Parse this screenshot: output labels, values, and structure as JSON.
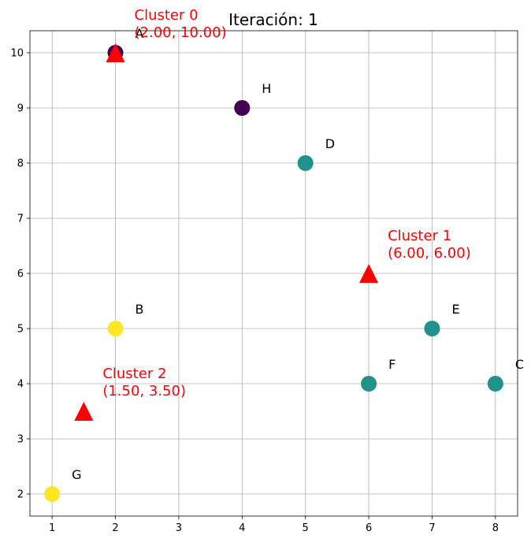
{
  "chart_data": {
    "type": "scatter",
    "title": "Iteración: 1",
    "xlabel": "",
    "ylabel": "",
    "xlim": [
      0.65,
      8.35
    ],
    "ylim": [
      1.6,
      10.4
    ],
    "xticks": [
      1,
      2,
      3,
      4,
      5,
      6,
      7,
      8
    ],
    "yticks": [
      2,
      3,
      4,
      5,
      6,
      7,
      8,
      9,
      10
    ],
    "grid": true,
    "legend": "none",
    "cluster_colors": [
      "#440154",
      "#21918c",
      "#fde725"
    ],
    "centroid_color": "#ff0000",
    "points": [
      {
        "label": "A",
        "x": 2,
        "y": 10,
        "cluster": 0
      },
      {
        "label": "B",
        "x": 2,
        "y": 5,
        "cluster": 2
      },
      {
        "label": "C",
        "x": 8,
        "y": 4,
        "cluster": 1
      },
      {
        "label": "D",
        "x": 5,
        "y": 8,
        "cluster": 1
      },
      {
        "label": "E",
        "x": 7,
        "y": 5,
        "cluster": 1
      },
      {
        "label": "F",
        "x": 6,
        "y": 4,
        "cluster": 1
      },
      {
        "label": "G",
        "x": 1,
        "y": 2,
        "cluster": 2
      },
      {
        "label": "H",
        "x": 4,
        "y": 9,
        "cluster": 0
      }
    ],
    "centroids": [
      {
        "name": "Cluster 0",
        "coords": "(2.00, 10.00)",
        "x": 2.0,
        "y": 10.0
      },
      {
        "name": "Cluster 1",
        "coords": "(6.00, 6.00)",
        "x": 6.0,
        "y": 6.0
      },
      {
        "name": "Cluster 2",
        "coords": "(1.50, 3.50)",
        "x": 1.5,
        "y": 3.5
      }
    ]
  }
}
